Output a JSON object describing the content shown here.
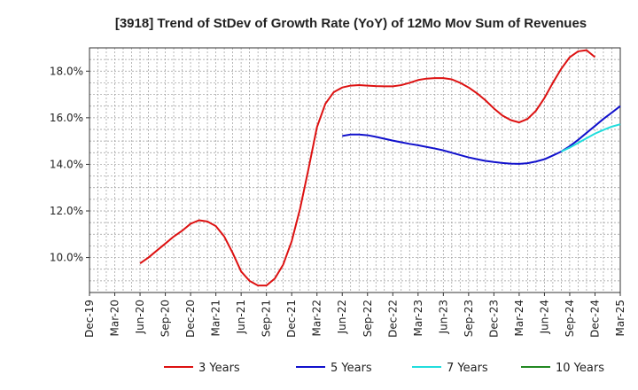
{
  "chart_data": {
    "type": "line",
    "title": "[3918]  Trend of StDev of Growth Rate (YoY) of 12Mo Mov Sum of Revenues",
    "xlabel": "",
    "ylabel": "",
    "ylim": [
      8.5,
      19.0
    ],
    "y_ticks": [
      10.0,
      12.0,
      14.0,
      16.0,
      18.0
    ],
    "y_tick_labels": [
      "10.0%",
      "12.0%",
      "14.0%",
      "16.0%",
      "18.0%"
    ],
    "x_ticks": [
      2019.917,
      2020.167,
      2020.417,
      2020.667,
      2020.917,
      2021.167,
      2021.417,
      2021.667,
      2021.917,
      2022.167,
      2022.417,
      2022.667,
      2022.917,
      2023.167,
      2023.417,
      2023.667,
      2023.917,
      2024.167,
      2024.417,
      2024.667,
      2024.917,
      2025.167
    ],
    "x_tick_labels": [
      "Dec-19",
      "Mar-20",
      "Jun-20",
      "Sep-20",
      "Dec-20",
      "Mar-21",
      "Jun-21",
      "Sep-21",
      "Dec-21",
      "Mar-22",
      "Jun-22",
      "Sep-22",
      "Dec-22",
      "Mar-23",
      "Jun-23",
      "Sep-23",
      "Dec-23",
      "Mar-24",
      "Jun-24",
      "Sep-24",
      "Dec-24",
      "Mar-25"
    ],
    "xlim": [
      2019.917,
      2025.167
    ],
    "grid": true,
    "legend_position": "bottom",
    "series": [
      {
        "name": "3 Years",
        "color": "#dd1111",
        "points": [
          [
            2020.417,
            9.75
          ],
          [
            2020.5,
            10.0
          ],
          [
            2020.583,
            10.3
          ],
          [
            2020.667,
            10.6
          ],
          [
            2020.75,
            10.9
          ],
          [
            2020.833,
            11.15
          ],
          [
            2020.917,
            11.45
          ],
          [
            2021.0,
            11.6
          ],
          [
            2021.083,
            11.55
          ],
          [
            2021.167,
            11.35
          ],
          [
            2021.25,
            10.9
          ],
          [
            2021.333,
            10.2
          ],
          [
            2021.417,
            9.4
          ],
          [
            2021.5,
            9.0
          ],
          [
            2021.583,
            8.8
          ],
          [
            2021.667,
            8.8
          ],
          [
            2021.75,
            9.1
          ],
          [
            2021.833,
            9.7
          ],
          [
            2021.917,
            10.7
          ],
          [
            2022.0,
            12.1
          ],
          [
            2022.083,
            13.8
          ],
          [
            2022.167,
            15.6
          ],
          [
            2022.25,
            16.6
          ],
          [
            2022.333,
            17.1
          ],
          [
            2022.417,
            17.3
          ],
          [
            2022.5,
            17.38
          ],
          [
            2022.583,
            17.4
          ],
          [
            2022.667,
            17.38
          ],
          [
            2022.75,
            17.36
          ],
          [
            2022.833,
            17.35
          ],
          [
            2022.917,
            17.35
          ],
          [
            2023.0,
            17.4
          ],
          [
            2023.083,
            17.5
          ],
          [
            2023.167,
            17.62
          ],
          [
            2023.25,
            17.68
          ],
          [
            2023.333,
            17.7
          ],
          [
            2023.417,
            17.7
          ],
          [
            2023.5,
            17.65
          ],
          [
            2023.583,
            17.5
          ],
          [
            2023.667,
            17.3
          ],
          [
            2023.75,
            17.05
          ],
          [
            2023.833,
            16.75
          ],
          [
            2023.917,
            16.4
          ],
          [
            2024.0,
            16.1
          ],
          [
            2024.083,
            15.9
          ],
          [
            2024.167,
            15.8
          ],
          [
            2024.25,
            15.95
          ],
          [
            2024.333,
            16.3
          ],
          [
            2024.417,
            16.85
          ],
          [
            2024.5,
            17.5
          ],
          [
            2024.583,
            18.1
          ],
          [
            2024.667,
            18.6
          ],
          [
            2024.75,
            18.85
          ],
          [
            2024.833,
            18.9
          ],
          [
            2024.917,
            18.6
          ]
        ]
      },
      {
        "name": "5 Years",
        "color": "#1111cc",
        "points": [
          [
            2022.417,
            15.22
          ],
          [
            2022.5,
            15.28
          ],
          [
            2022.583,
            15.28
          ],
          [
            2022.667,
            15.25
          ],
          [
            2022.75,
            15.18
          ],
          [
            2022.833,
            15.1
          ],
          [
            2022.917,
            15.02
          ],
          [
            2023.0,
            14.95
          ],
          [
            2023.083,
            14.88
          ],
          [
            2023.167,
            14.82
          ],
          [
            2023.25,
            14.75
          ],
          [
            2023.333,
            14.68
          ],
          [
            2023.417,
            14.6
          ],
          [
            2023.5,
            14.5
          ],
          [
            2023.583,
            14.4
          ],
          [
            2023.667,
            14.3
          ],
          [
            2023.75,
            14.22
          ],
          [
            2023.833,
            14.15
          ],
          [
            2023.917,
            14.1
          ],
          [
            2024.0,
            14.06
          ],
          [
            2024.083,
            14.03
          ],
          [
            2024.167,
            14.02
          ],
          [
            2024.25,
            14.05
          ],
          [
            2024.333,
            14.12
          ],
          [
            2024.417,
            14.22
          ],
          [
            2024.5,
            14.38
          ],
          [
            2024.583,
            14.55
          ],
          [
            2024.667,
            14.78
          ],
          [
            2024.75,
            15.05
          ],
          [
            2024.833,
            15.35
          ],
          [
            2024.917,
            15.65
          ],
          [
            2025.0,
            15.95
          ],
          [
            2025.083,
            16.22
          ],
          [
            2025.167,
            16.5
          ]
        ]
      },
      {
        "name": "7 Years",
        "color": "#22dddd",
        "points": [
          [
            2024.583,
            14.55
          ],
          [
            2024.667,
            14.72
          ],
          [
            2024.75,
            14.92
          ],
          [
            2024.833,
            15.12
          ],
          [
            2024.917,
            15.32
          ],
          [
            2025.0,
            15.48
          ],
          [
            2025.083,
            15.62
          ],
          [
            2025.167,
            15.72
          ]
        ]
      },
      {
        "name": "10 Years",
        "color": "#228822",
        "points": []
      }
    ]
  }
}
